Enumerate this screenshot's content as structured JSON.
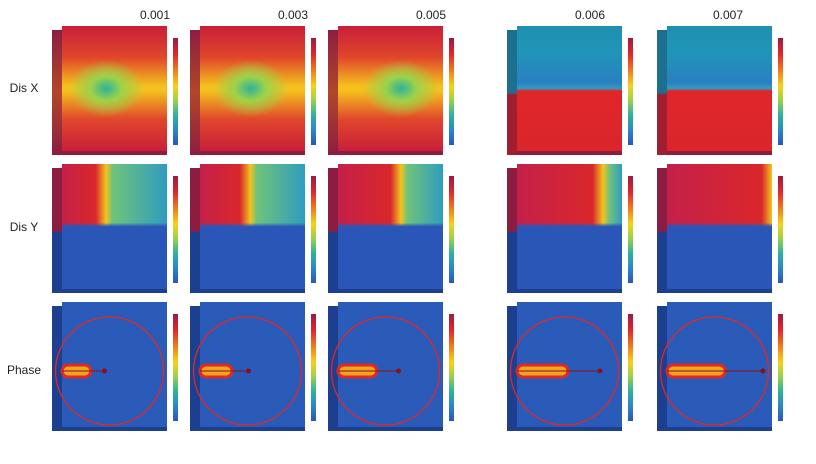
{
  "columns": [
    {
      "label": "0.001",
      "crack_tip": 0.42,
      "dx_style": "smooth",
      "dy_split": 0.42
    },
    {
      "label": "0.003",
      "crack_tip": 0.48,
      "dx_style": "smooth",
      "dy_split": 0.48
    },
    {
      "label": "0.005",
      "crack_tip": 0.6,
      "dx_style": "smooth",
      "dy_split": 0.6
    },
    {
      "label": "0.006",
      "crack_tip": 0.82,
      "dx_style": "split",
      "dy_split": 0.82
    },
    {
      "label": "0.007",
      "crack_tip": 0.95,
      "dx_style": "split",
      "dy_split": 1.0
    }
  ],
  "rows": [
    {
      "label": "Dis X",
      "field": "dis_x"
    },
    {
      "label": "Dis Y",
      "field": "dis_y"
    },
    {
      "label": "Phase",
      "field": "phase"
    }
  ],
  "colors": {
    "red": "#d7262b",
    "dark_red": "#9b1b45",
    "blue": "#2a56b8",
    "phase_bg": "#2a5bb8",
    "circle": "#e02828",
    "side_dark": "#8c1d40",
    "side_blue": "#1d3f8f"
  },
  "colorbar_ticks": [
    "",
    "",
    "",
    "",
    "",
    "",
    "",
    "",
    "",
    ""
  ]
}
